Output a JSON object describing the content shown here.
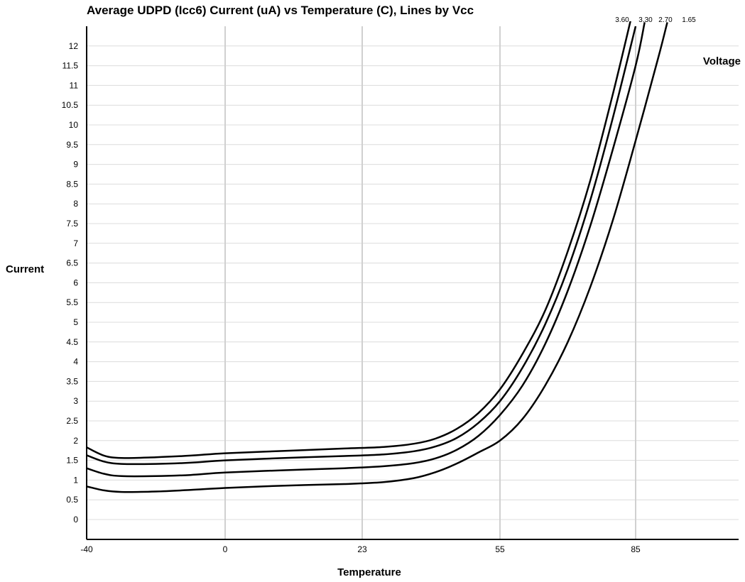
{
  "chart_data": {
    "type": "line",
    "title": "Average UDPD (Icc6) Current (uA) vs Temperature (C), Lines by Vcc",
    "xlabel": "Temperature",
    "ylabel": "Current",
    "legend_title": "Voltage",
    "x_ticks": [
      "-40",
      "0",
      "23",
      "55",
      "85"
    ],
    "y_ticks": [
      "0",
      "0.5",
      "1",
      "1.5",
      "2",
      "2.5",
      "3",
      "3.5",
      "4",
      "4.5",
      "5",
      "5.5",
      "6",
      "6.5",
      "7",
      "7.5",
      "8",
      "8.5",
      "9",
      "9.5",
      "10",
      "10.5",
      "11",
      "11.5",
      "12"
    ],
    "grid": true,
    "series": [
      {
        "name": "3.60",
        "points": [
          [
            -40,
            1.83
          ],
          [
            -35,
            1.62
          ],
          [
            -30,
            1.56
          ],
          [
            -20,
            1.58
          ],
          [
            -10,
            1.62
          ],
          [
            0,
            1.68
          ],
          [
            10,
            1.74
          ],
          [
            20,
            1.8
          ],
          [
            28,
            1.84
          ],
          [
            35,
            1.92
          ],
          [
            40,
            2.05
          ],
          [
            45,
            2.3
          ],
          [
            50,
            2.7
          ],
          [
            55,
            3.3
          ],
          [
            60,
            4.2
          ],
          [
            65,
            5.3
          ],
          [
            70,
            6.8
          ],
          [
            75,
            8.6
          ],
          [
            80,
            10.8
          ],
          [
            84,
            12.7
          ]
        ]
      },
      {
        "name": "3.30",
        "points": [
          [
            -40,
            1.63
          ],
          [
            -35,
            1.47
          ],
          [
            -30,
            1.41
          ],
          [
            -20,
            1.41
          ],
          [
            -10,
            1.44
          ],
          [
            0,
            1.5
          ],
          [
            10,
            1.56
          ],
          [
            20,
            1.61
          ],
          [
            28,
            1.65
          ],
          [
            35,
            1.73
          ],
          [
            40,
            1.85
          ],
          [
            45,
            2.07
          ],
          [
            50,
            2.45
          ],
          [
            55,
            3.0
          ],
          [
            60,
            3.85
          ],
          [
            65,
            4.95
          ],
          [
            70,
            6.35
          ],
          [
            75,
            8.1
          ],
          [
            80,
            10.2
          ],
          [
            85,
            12.5
          ]
        ]
      },
      {
        "name": "2.70",
        "points": [
          [
            -40,
            1.3
          ],
          [
            -35,
            1.16
          ],
          [
            -30,
            1.1
          ],
          [
            -20,
            1.1
          ],
          [
            -10,
            1.13
          ],
          [
            0,
            1.19
          ],
          [
            10,
            1.25
          ],
          [
            20,
            1.3
          ],
          [
            28,
            1.35
          ],
          [
            35,
            1.43
          ],
          [
            40,
            1.55
          ],
          [
            45,
            1.77
          ],
          [
            50,
            2.12
          ],
          [
            55,
            2.65
          ],
          [
            60,
            3.4
          ],
          [
            65,
            4.45
          ],
          [
            70,
            5.8
          ],
          [
            75,
            7.45
          ],
          [
            80,
            9.4
          ],
          [
            85,
            11.5
          ],
          [
            87,
            12.6
          ]
        ]
      },
      {
        "name": "1.65",
        "points": [
          [
            -40,
            0.84
          ],
          [
            -35,
            0.74
          ],
          [
            -30,
            0.7
          ],
          [
            -20,
            0.71
          ],
          [
            -10,
            0.75
          ],
          [
            0,
            0.8
          ],
          [
            10,
            0.86
          ],
          [
            20,
            0.9
          ],
          [
            28,
            0.95
          ],
          [
            35,
            1.05
          ],
          [
            40,
            1.2
          ],
          [
            45,
            1.42
          ],
          [
            50,
            1.7
          ],
          [
            55,
            2.0
          ],
          [
            60,
            2.55
          ],
          [
            65,
            3.4
          ],
          [
            70,
            4.5
          ],
          [
            75,
            5.9
          ],
          [
            80,
            7.6
          ],
          [
            85,
            9.6
          ],
          [
            90,
            11.7
          ],
          [
            92,
            12.6
          ]
        ]
      }
    ]
  }
}
